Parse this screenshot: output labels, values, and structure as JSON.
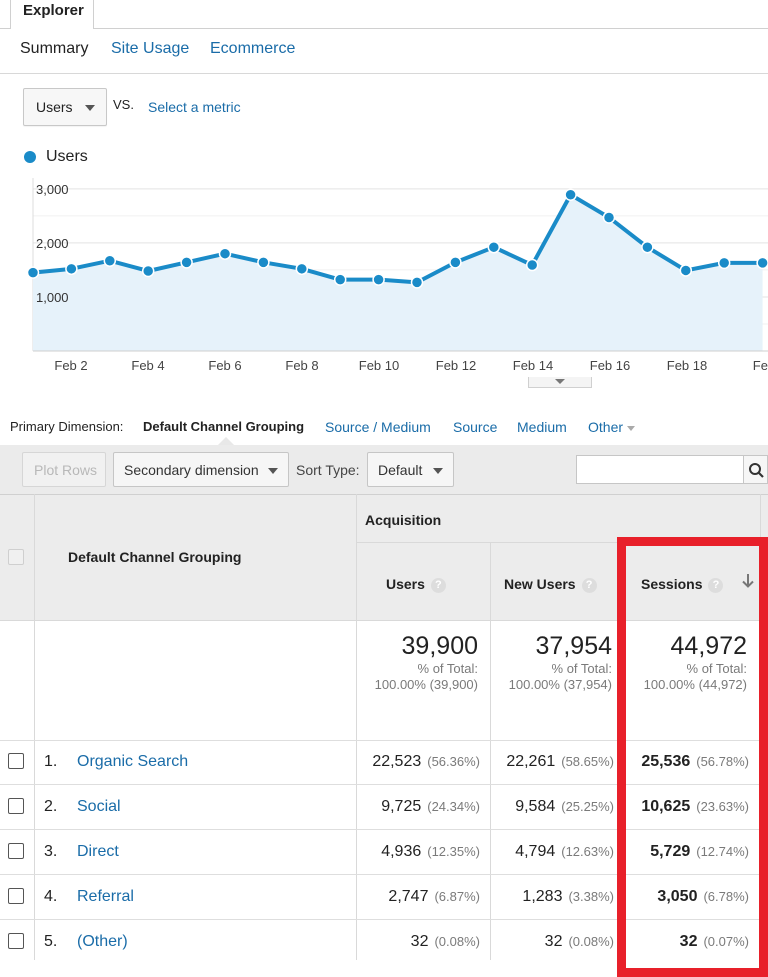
{
  "tabs": {
    "explorer": "Explorer"
  },
  "subtabs": {
    "summary": "Summary",
    "site_usage": "Site Usage",
    "ecommerce": "Ecommerce"
  },
  "metric": {
    "selected": "Users",
    "vs": "VS.",
    "select_metric": "Select a metric"
  },
  "legend": {
    "label": "Users",
    "color": "#1a8bc8"
  },
  "chart_data": {
    "type": "area",
    "series": [
      {
        "name": "Users",
        "values": [
          1450,
          1520,
          1670,
          1480,
          1640,
          1800,
          1640,
          1520,
          1320,
          1320,
          1270,
          1640,
          1920,
          1590,
          2890,
          2470,
          1920,
          1490,
          1630,
          1630
        ]
      }
    ],
    "x_ticks": [
      "Feb 2",
      "Feb 4",
      "Feb 6",
      "Feb 8",
      "Feb 10",
      "Feb 12",
      "Feb 14",
      "Feb 16",
      "Feb 18",
      "Feb"
    ],
    "y_ticks": [
      "1,000",
      "2,000",
      "3,000"
    ],
    "ylim": [
      0,
      3200
    ],
    "grid": true,
    "color": "#1a8bc8"
  },
  "primary_dimension": {
    "label": "Primary Dimension:",
    "active": "Default Channel Grouping",
    "options": [
      "Source / Medium",
      "Source",
      "Medium",
      "Other"
    ]
  },
  "toolbar": {
    "plot_rows": "Plot Rows",
    "secondary": "Secondary dimension",
    "sort_label": "Sort Type:",
    "sort_value": "Default"
  },
  "table": {
    "dimension_header": "Default Channel Grouping",
    "group_header": "Acquisition",
    "columns": [
      "Users",
      "New Users",
      "Sessions"
    ],
    "qmark": "?",
    "totals": [
      {
        "value": "39,900",
        "label": "% of Total:",
        "detail": "100.00% (39,900)"
      },
      {
        "value": "37,954",
        "label": "% of Total:",
        "detail": "100.00% (37,954)"
      },
      {
        "value": "44,972",
        "label": "% of Total:",
        "detail": "100.00% (44,972)"
      }
    ],
    "rows": [
      {
        "num": "1.",
        "name": "Organic Search",
        "users": "22,523",
        "users_pct": "(56.36%)",
        "new": "22,261",
        "new_pct": "(58.65%)",
        "sessions": "25,536",
        "sessions_pct": "(56.78%)"
      },
      {
        "num": "2.",
        "name": "Social",
        "users": "9,725",
        "users_pct": "(24.34%)",
        "new": "9,584",
        "new_pct": "(25.25%)",
        "sessions": "10,625",
        "sessions_pct": "(23.63%)"
      },
      {
        "num": "3.",
        "name": "Direct",
        "users": "4,936",
        "users_pct": "(12.35%)",
        "new": "4,794",
        "new_pct": "(12.63%)",
        "sessions": "5,729",
        "sessions_pct": "(12.74%)"
      },
      {
        "num": "4.",
        "name": "Referral",
        "users": "2,747",
        "users_pct": "(6.87%)",
        "new": "1,283",
        "new_pct": "(3.38%)",
        "sessions": "3,050",
        "sessions_pct": "(6.78%)"
      },
      {
        "num": "5.",
        "name": "(Other)",
        "users": "32",
        "users_pct": "(0.08%)",
        "new": "32",
        "new_pct": "(0.08%)",
        "sessions": "32",
        "sessions_pct": "(0.07%)"
      }
    ]
  }
}
